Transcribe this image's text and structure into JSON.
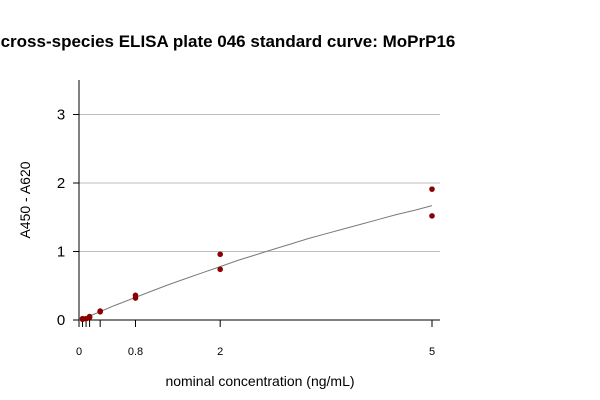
{
  "chart_data": {
    "type": "scatter",
    "title": "cross-species ELISA plate 046 standard curve: MoPrP16",
    "xlabel": "nominal concentration (ng/mL)",
    "ylabel": "A450 - A620",
    "xlim": [
      0,
      5
    ],
    "ylim": [
      0,
      3.5
    ],
    "x_tick_labels": [
      "0",
      "0.8",
      "2",
      "5"
    ],
    "x_ticks": [
      0,
      0.8,
      2,
      5
    ],
    "x_minor_ticks": [
      0.05,
      0.1,
      0.15,
      0.3
    ],
    "y_ticks": [
      0,
      1,
      2,
      3
    ],
    "y_tick_labels": [
      "0",
      "1",
      "2",
      "3"
    ],
    "grid": "horizontal",
    "point_color": "#8b0000",
    "curve_color": "#7a7a7a",
    "points": [
      {
        "x": 0.05,
        "y": 0.01
      },
      {
        "x": 0.05,
        "y": 0.02
      },
      {
        "x": 0.1,
        "y": 0.02
      },
      {
        "x": 0.15,
        "y": 0.04
      },
      {
        "x": 0.15,
        "y": 0.05
      },
      {
        "x": 0.3,
        "y": 0.12
      },
      {
        "x": 0.3,
        "y": 0.13
      },
      {
        "x": 0.8,
        "y": 0.32
      },
      {
        "x": 0.8,
        "y": 0.36
      },
      {
        "x": 2,
        "y": 0.74
      },
      {
        "x": 2,
        "y": 0.96
      },
      {
        "x": 5,
        "y": 1.52
      },
      {
        "x": 5,
        "y": 1.91
      }
    ],
    "fit_curve": {
      "x": [
        0,
        0.25,
        0.5,
        0.75,
        1,
        1.25,
        1.5,
        1.75,
        2,
        2.25,
        2.5,
        2.75,
        3,
        3.25,
        3.5,
        3.75,
        4,
        4.25,
        4.5,
        4.75,
        5
      ],
      "y": [
        0,
        0.1,
        0.21,
        0.31,
        0.41,
        0.51,
        0.6,
        0.69,
        0.78,
        0.87,
        0.95,
        1.03,
        1.11,
        1.19,
        1.26,
        1.33,
        1.4,
        1.47,
        1.54,
        1.6,
        1.67
      ]
    }
  }
}
